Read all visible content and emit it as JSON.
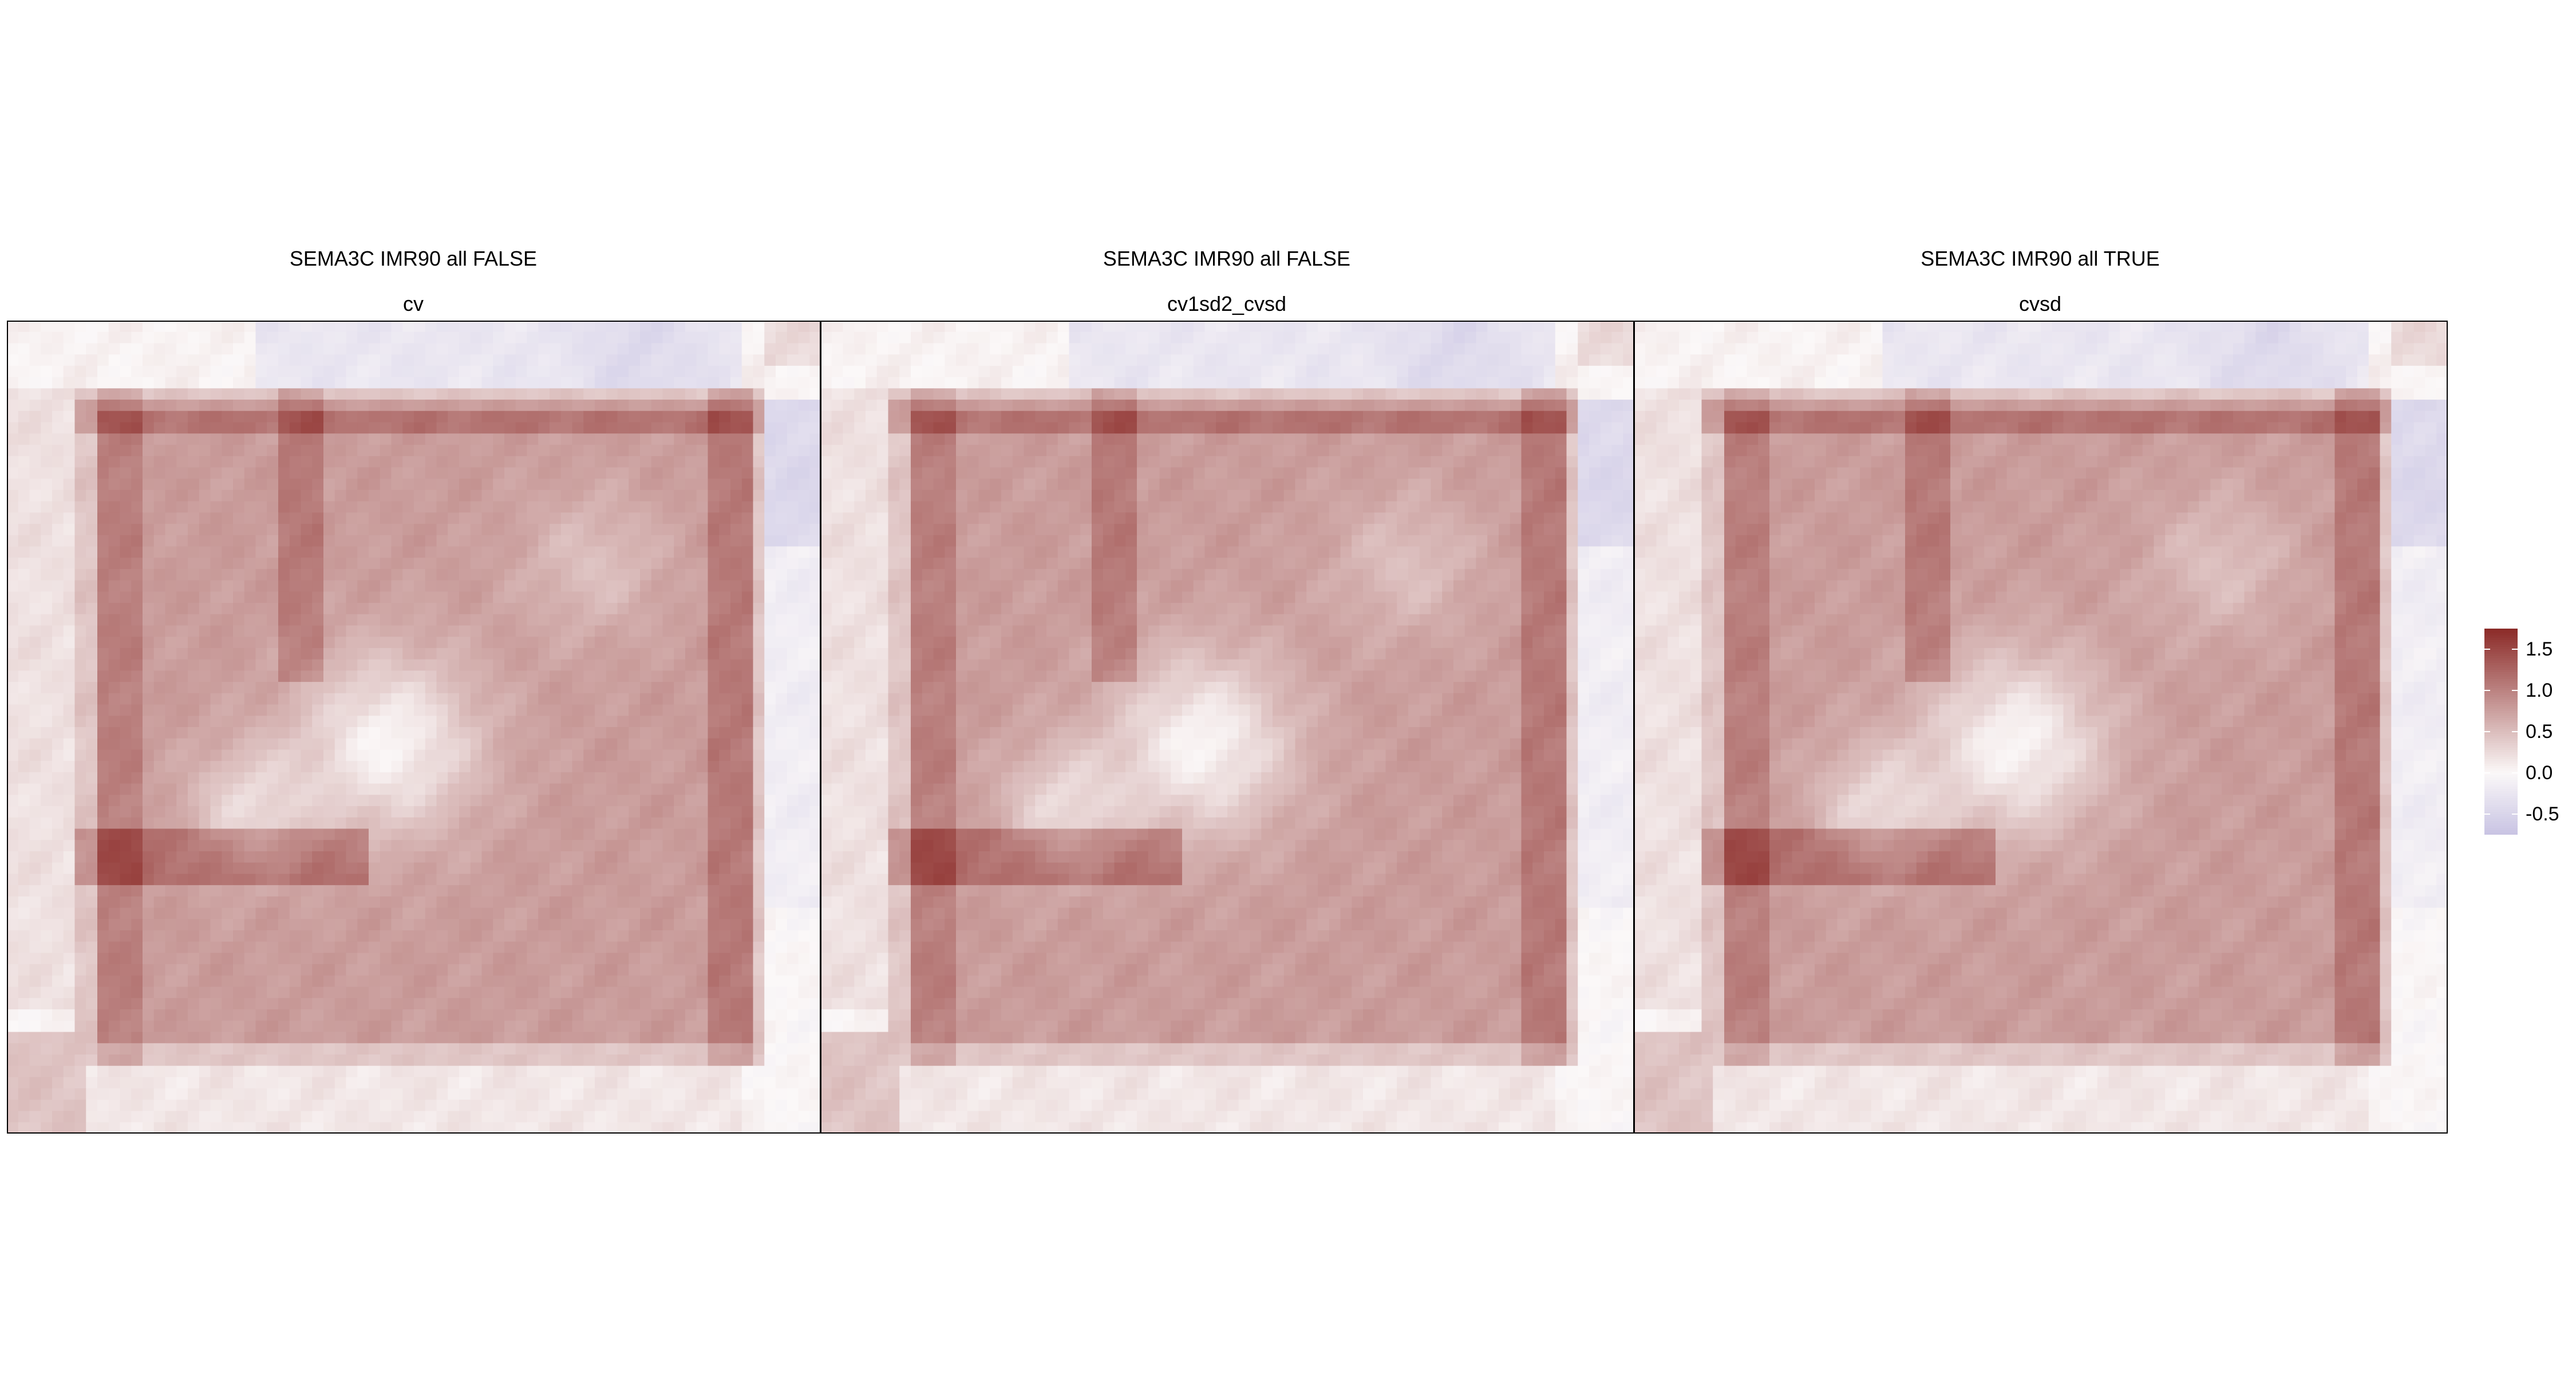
{
  "chart_data": [
    {
      "type": "heatmap",
      "title": "SEMA3C IMR90 all FALSE",
      "subtitle": "cv",
      "xlabel": "",
      "ylabel": "",
      "grid": false
    },
    {
      "type": "heatmap",
      "title": "SEMA3C IMR90 all FALSE",
      "subtitle": "cv1sd2_cvsd",
      "xlabel": "",
      "ylabel": "",
      "grid": false
    },
    {
      "type": "heatmap",
      "title": "SEMA3C IMR90 all TRUE",
      "subtitle": "cvsd",
      "xlabel": "",
      "ylabel": "",
      "grid": false
    }
  ],
  "legend": {
    "placement": "right",
    "range": [
      -0.75,
      1.75
    ],
    "ticks": [
      "1.5",
      "1.0",
      "0.5",
      "0.0",
      "-0.5"
    ],
    "tick_values": [
      1.5,
      1.0,
      0.5,
      0.0,
      -0.5
    ],
    "color_low": "#c8c3e3",
    "color_mid": "#fbf8f8",
    "color_high": "#8b2a27"
  },
  "colors": {
    "frame": "#000000",
    "background": "#ffffff"
  }
}
